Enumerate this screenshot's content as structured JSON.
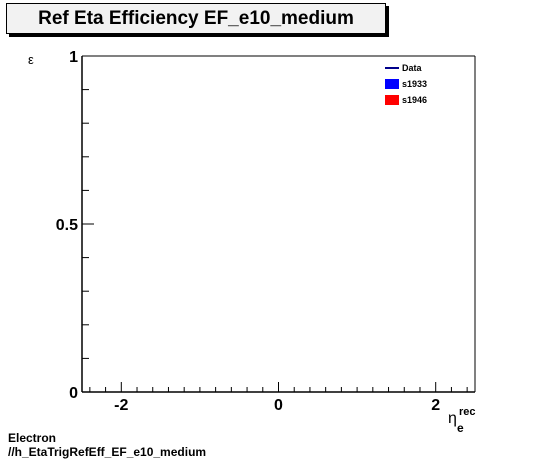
{
  "chart_data": {
    "type": "line",
    "title": "Ref Eta Efficiency EF_e10_medium",
    "ylabel": "ε",
    "xlabel": {
      "base": "η",
      "sub": "e",
      "sup": "rec"
    },
    "xlim": [
      -2.5,
      2.5
    ],
    "ylim": [
      0,
      1
    ],
    "x_major_ticks": [
      -2,
      0,
      2
    ],
    "x_tick_labels": [
      "-2",
      "0",
      "2"
    ],
    "y_major_ticks": [
      0,
      0.5,
      1
    ],
    "y_tick_labels": [
      "0",
      "0.5",
      "1"
    ],
    "grid": false,
    "legend_position": "top-right",
    "series": [
      {
        "name": "Data",
        "color": "#00008b",
        "style": "line",
        "x": [],
        "y": []
      },
      {
        "name": "s1933",
        "color": "#0000ff",
        "style": "fill",
        "x": [],
        "y": []
      },
      {
        "name": "s1946",
        "color": "#ff0000",
        "style": "fill",
        "x": [],
        "y": []
      }
    ]
  },
  "captions": {
    "line1": "Electron",
    "line2": "//h_EtaTrigRefEff_EF_e10_medium"
  }
}
